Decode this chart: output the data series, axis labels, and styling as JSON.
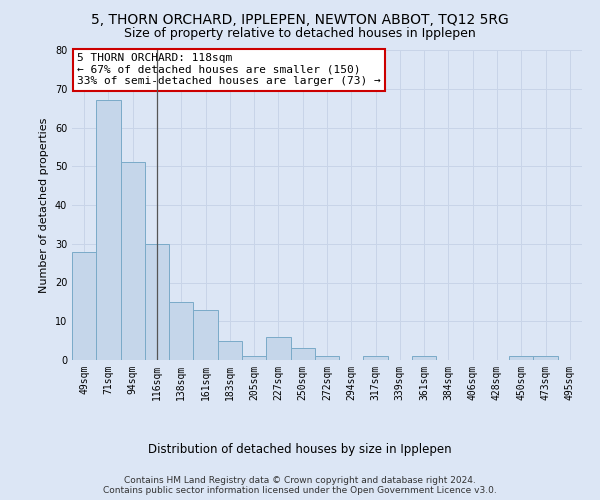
{
  "title": "5, THORN ORCHARD, IPPLEPEN, NEWTON ABBOT, TQ12 5RG",
  "subtitle": "Size of property relative to detached houses in Ipplepen",
  "xlabel": "Distribution of detached houses by size in Ipplepen",
  "ylabel": "Number of detached properties",
  "categories": [
    "49sqm",
    "71sqm",
    "94sqm",
    "116sqm",
    "138sqm",
    "161sqm",
    "183sqm",
    "205sqm",
    "227sqm",
    "250sqm",
    "272sqm",
    "294sqm",
    "317sqm",
    "339sqm",
    "361sqm",
    "384sqm",
    "406sqm",
    "428sqm",
    "450sqm",
    "473sqm",
    "495sqm"
  ],
  "values": [
    28,
    67,
    51,
    30,
    15,
    13,
    5,
    1,
    6,
    3,
    1,
    0,
    1,
    0,
    1,
    0,
    0,
    0,
    1,
    1,
    0
  ],
  "bar_color": "#c5d6ea",
  "bar_edge_color": "#7aaac8",
  "highlight_index": 3,
  "highlight_line_color": "#555555",
  "annotation_text": "5 THORN ORCHARD: 118sqm\n← 67% of detached houses are smaller (150)\n33% of semi-detached houses are larger (73) →",
  "annotation_box_color": "#ffffff",
  "annotation_box_edge_color": "#cc0000",
  "ylim": [
    0,
    80
  ],
  "yticks": [
    0,
    10,
    20,
    30,
    40,
    50,
    60,
    70,
    80
  ],
  "grid_color": "#c8d4e8",
  "background_color": "#dce6f5",
  "plot_background_color": "#dce6f5",
  "footer_text": "Contains HM Land Registry data © Crown copyright and database right 2024.\nContains public sector information licensed under the Open Government Licence v3.0.",
  "title_fontsize": 10,
  "subtitle_fontsize": 9,
  "xlabel_fontsize": 8.5,
  "ylabel_fontsize": 8,
  "tick_fontsize": 7,
  "annotation_fontsize": 8,
  "footer_fontsize": 6.5
}
